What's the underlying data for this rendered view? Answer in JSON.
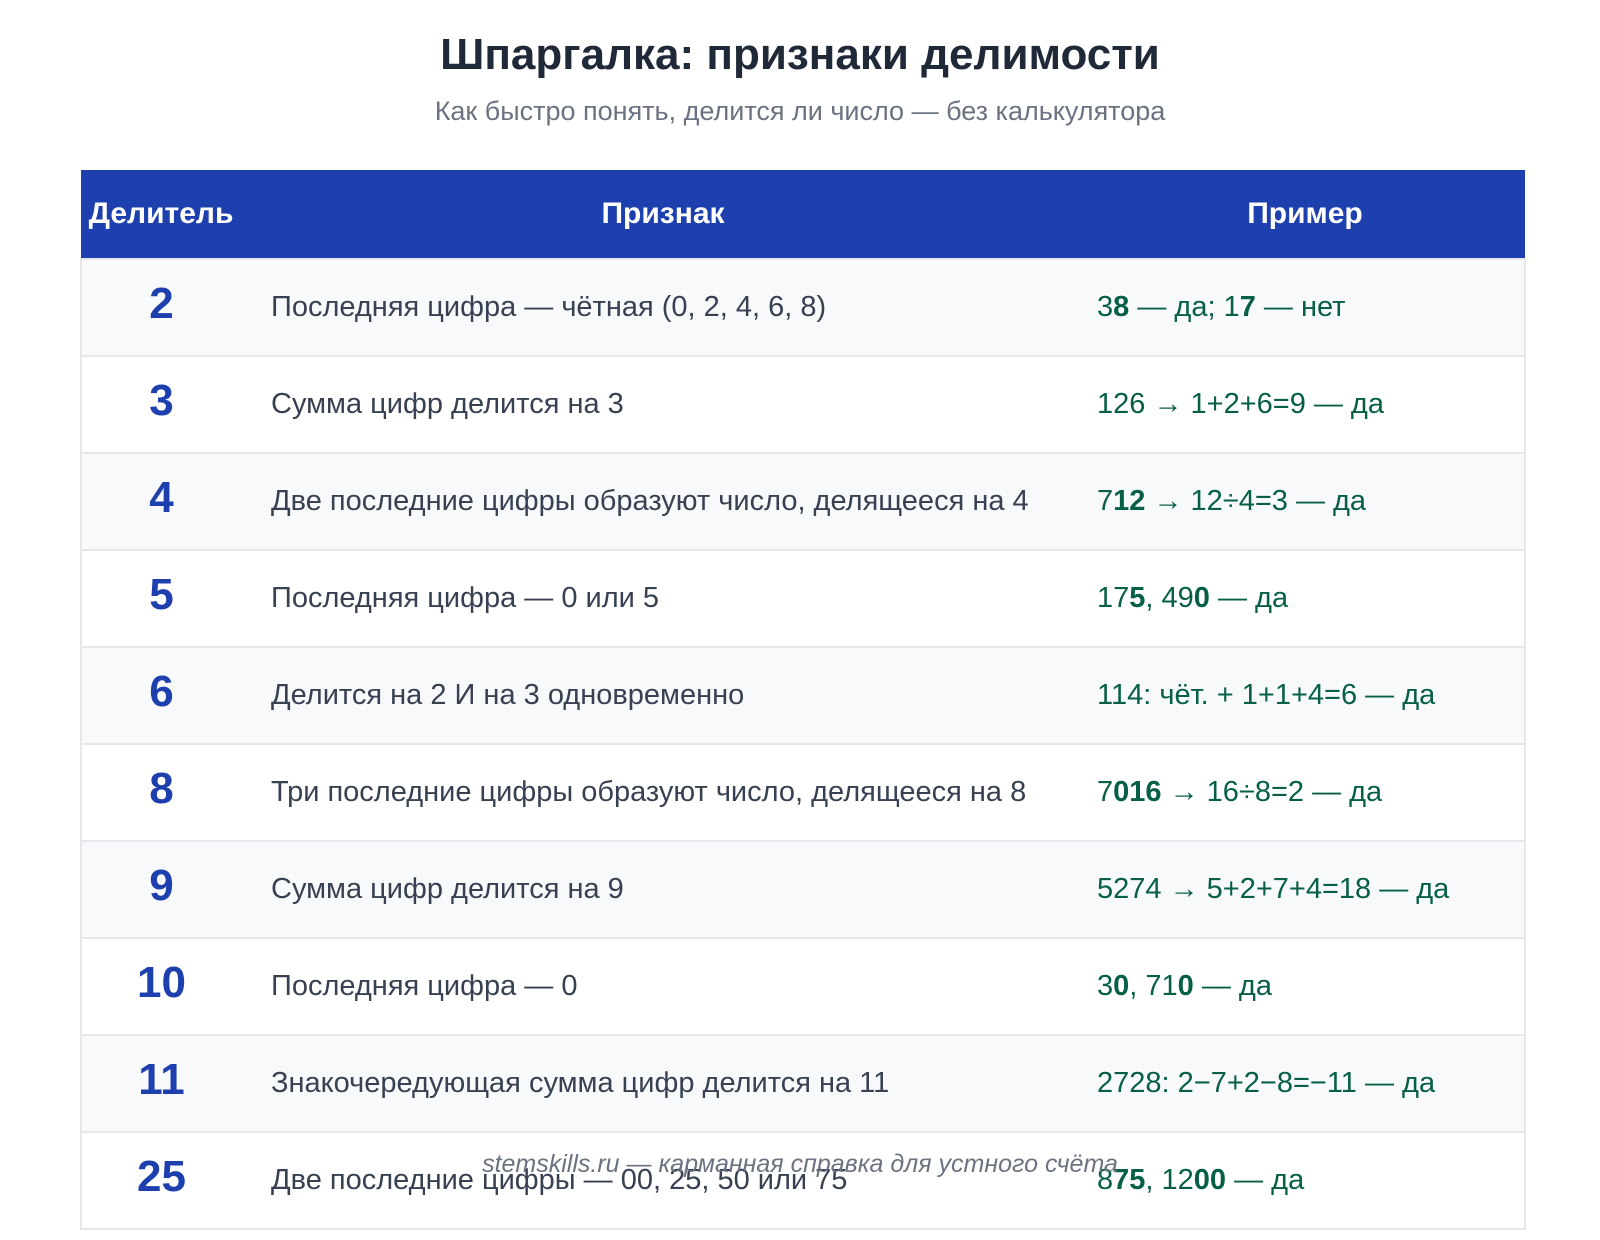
{
  "header": {
    "title": "Шпаргалка: признаки делимости",
    "subtitle": "Как быстро понять, делится ли число — без калькулятора"
  },
  "table": {
    "columns": [
      "Делитель",
      "Признак",
      "Пример"
    ],
    "rows": [
      {
        "divisor": "2",
        "rule": "Последняя цифра — чётная (0, 2, 4, 6, 8)",
        "example": [
          [
            "3",
            false
          ],
          [
            "8",
            true
          ],
          [
            " — да; 1",
            false
          ],
          [
            "7",
            true
          ],
          [
            " — нет",
            false
          ]
        ]
      },
      {
        "divisor": "3",
        "rule": "Сумма цифр делится на 3",
        "example": [
          [
            "126 → 1+2+6=9 — да",
            false
          ]
        ]
      },
      {
        "divisor": "4",
        "rule": "Две последние цифры образуют число, делящееся на 4",
        "example": [
          [
            "7",
            false
          ],
          [
            "12",
            true
          ],
          [
            " → 12÷4=3 — да",
            false
          ]
        ]
      },
      {
        "divisor": "5",
        "rule": "Последняя цифра — 0 или 5",
        "example": [
          [
            "17",
            false
          ],
          [
            "5",
            true
          ],
          [
            ", 49",
            false
          ],
          [
            "0",
            true
          ],
          [
            " — да",
            false
          ]
        ]
      },
      {
        "divisor": "6",
        "rule": "Делится на 2 И на 3 одновременно",
        "example": [
          [
            "114: чёт. + 1+1+4=6 — да",
            false
          ]
        ]
      },
      {
        "divisor": "8",
        "rule": "Три последние цифры образуют число, делящееся на 8",
        "example": [
          [
            "7",
            false
          ],
          [
            "016",
            true
          ],
          [
            " → 16÷8=2 — да",
            false
          ]
        ]
      },
      {
        "divisor": "9",
        "rule": "Сумма цифр делится на 9",
        "example": [
          [
            "5274 → 5+2+7+4=18 — да",
            false
          ]
        ]
      },
      {
        "divisor": "10",
        "rule": "Последняя цифра — 0",
        "example": [
          [
            "3",
            false
          ],
          [
            "0",
            true
          ],
          [
            ", 71",
            false
          ],
          [
            "0",
            true
          ],
          [
            " — да",
            false
          ]
        ]
      },
      {
        "divisor": "11",
        "rule": "Знакочередующая сумма цифр делится на 11",
        "example": [
          [
            "2728: 2−7+2−8=−11 — да",
            false
          ]
        ]
      },
      {
        "divisor": "25",
        "rule": "Две последние цифры — 00, 25, 50 или 75",
        "example": [
          [
            "8",
            false
          ],
          [
            "75",
            true
          ],
          [
            ", 12",
            false
          ],
          [
            "00",
            true
          ],
          [
            " — да",
            false
          ]
        ]
      }
    ]
  },
  "footer": {
    "text": "stemskills.ru — карманная справка для устного счёта"
  },
  "colors": {
    "header_bg": "#1e40af",
    "divisor_text": "#1e40af",
    "example_text": "#065f46",
    "rule_text": "#374151"
  }
}
